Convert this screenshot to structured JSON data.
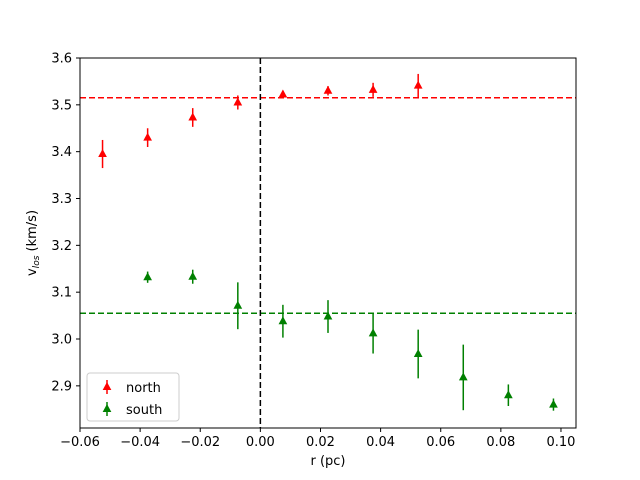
{
  "chart_data": {
    "type": "scatter",
    "title": "",
    "xlabel": "r (pc)",
    "ylabel": {
      "main": "v",
      "subscript": "los",
      "suffix": " (km/s)"
    },
    "xlim": [
      -0.06,
      0.105
    ],
    "ylim": [
      2.81,
      3.6
    ],
    "xticks": [
      -0.06,
      -0.04,
      -0.02,
      0.0,
      0.02,
      0.04,
      0.06,
      0.08,
      0.1
    ],
    "xtick_labels": [
      "−0.06",
      "−0.04",
      "−0.02",
      "0.00",
      "0.02",
      "0.04",
      "0.06",
      "0.08",
      "0.10"
    ],
    "yticks": [
      2.9,
      3.0,
      3.1,
      3.2,
      3.3,
      3.4,
      3.5,
      3.6
    ],
    "ytick_labels": [
      "2.9",
      "3.0",
      "3.1",
      "3.2",
      "3.3",
      "3.4",
      "3.5",
      "3.6"
    ],
    "grid": false,
    "legend_position": "lower-left",
    "marker": "triangle-up",
    "series": [
      {
        "name": "north",
        "color": "#ff0000",
        "mean_line": 3.515,
        "points": [
          {
            "x": -0.0525,
            "y": 3.395,
            "err": 0.03
          },
          {
            "x": -0.0375,
            "y": 3.43,
            "err": 0.02
          },
          {
            "x": -0.0225,
            "y": 3.473,
            "err": 0.02
          },
          {
            "x": -0.0075,
            "y": 3.505,
            "err": 0.015
          },
          {
            "x": 0.0075,
            "y": 3.522,
            "err": 0.008
          },
          {
            "x": 0.0225,
            "y": 3.53,
            "err": 0.01
          },
          {
            "x": 0.0375,
            "y": 3.532,
            "err": 0.015
          },
          {
            "x": 0.0525,
            "y": 3.541,
            "err": 0.025
          }
        ]
      },
      {
        "name": "south",
        "color": "#008000",
        "mean_line": 3.055,
        "points": [
          {
            "x": -0.0375,
            "y": 3.132,
            "err": 0.012
          },
          {
            "x": -0.0225,
            "y": 3.133,
            "err": 0.015
          },
          {
            "x": -0.0075,
            "y": 3.071,
            "err": 0.05
          },
          {
            "x": 0.0075,
            "y": 3.038,
            "err": 0.035
          },
          {
            "x": 0.0225,
            "y": 3.048,
            "err": 0.035
          },
          {
            "x": 0.0375,
            "y": 3.012,
            "err": 0.043
          },
          {
            "x": 0.0525,
            "y": 2.968,
            "err": 0.052
          },
          {
            "x": 0.0675,
            "y": 2.918,
            "err": 0.07
          },
          {
            "x": 0.0825,
            "y": 2.88,
            "err": 0.023
          },
          {
            "x": 0.0975,
            "y": 2.86,
            "err": 0.013
          }
        ]
      }
    ],
    "reference_lines": [
      {
        "orientation": "vertical",
        "x": 0.0,
        "color": "#000000",
        "style": "dashed"
      }
    ]
  }
}
